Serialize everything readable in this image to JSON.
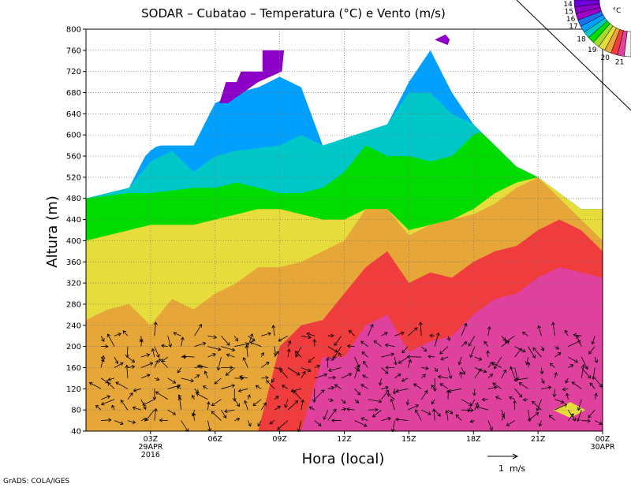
{
  "chart_data": {
    "type": "heatmap",
    "title": "SODAR – Cubatao – Temperatura (°C) e Vento (m/s)",
    "xlabel": "Hora (local)",
    "ylabel": "Altura (m)",
    "ylim": [
      40,
      800
    ],
    "y_ticks": [
      40,
      80,
      120,
      160,
      200,
      240,
      280,
      320,
      360,
      400,
      440,
      480,
      520,
      560,
      600,
      640,
      680,
      720,
      760,
      800
    ],
    "x_range_hours": [
      0,
      24
    ],
    "x_ticks": [
      {
        "hour": 3,
        "lines": [
          "03Z",
          "29APR",
          "2016"
        ]
      },
      {
        "hour": 6,
        "lines": [
          "06Z"
        ]
      },
      {
        "hour": 9,
        "lines": [
          "09Z"
        ]
      },
      {
        "hour": 12,
        "lines": [
          "12Z"
        ]
      },
      {
        "hour": 15,
        "lines": [
          "15Z"
        ]
      },
      {
        "hour": 18,
        "lines": [
          "18Z"
        ]
      },
      {
        "hour": 21,
        "lines": [
          "21Z"
        ]
      },
      {
        "hour": 24,
        "lines": [
          "00Z",
          "30APR"
        ]
      }
    ],
    "grid": true,
    "legend": {
      "placement": "top-right",
      "unit": "°C",
      "levels": [
        {
          "label": "",
          "color": "#f0f0f0"
        },
        {
          "label": "21",
          "color": "#e0409e"
        },
        {
          "label": "",
          "color": "#f03c3c"
        },
        {
          "label": "20",
          "color": "#e6a638"
        },
        {
          "label": "",
          "color": "#e6dc3c"
        },
        {
          "label": "19",
          "color": "#a0dc32"
        },
        {
          "label": "",
          "color": "#00dc00"
        },
        {
          "label": "18",
          "color": "#00c8c8"
        },
        {
          "label": "",
          "color": "#00a0ff"
        },
        {
          "label": "17",
          "color": "#1e6ef0"
        },
        {
          "label": "16",
          "color": "#a000c8"
        },
        {
          "label": "15",
          "color": "#8c00c8"
        },
        {
          "label": "14",
          "color": "#6e00dc"
        }
      ]
    },
    "wind_scale": {
      "label": "1  m/s",
      "value": 1
    },
    "coverage_top_by_hour": [
      {
        "t": 0,
        "h": 480
      },
      {
        "t": 2,
        "h": 500
      },
      {
        "t": 3,
        "h": 580
      },
      {
        "t": 5,
        "h": 580
      },
      {
        "t": 6,
        "h": 660
      },
      {
        "t": 7,
        "h": 700
      },
      {
        "t": 8,
        "h": 720
      },
      {
        "t": 9,
        "h": 760
      },
      {
        "t": 10,
        "h": 700
      },
      {
        "t": 11,
        "h": 580
      },
      {
        "t": 14,
        "h": 620
      },
      {
        "t": 15,
        "h": 700
      },
      {
        "t": 16,
        "h": 780
      },
      {
        "t": 17,
        "h": 680
      },
      {
        "t": 18,
        "h": 620
      },
      {
        "t": 20,
        "h": 540
      },
      {
        "t": 21,
        "h": 520
      },
      {
        "t": 23,
        "h": 460
      },
      {
        "t": 24,
        "h": 460
      }
    ],
    "temperature_bands": [
      {
        "color": "#8c00c8",
        "upper": [
          {
            "t": 0,
            "h": 40
          },
          {
            "t": 24,
            "h": 40
          }
        ]
      },
      {
        "color": "#1e6ef0",
        "upper": [
          {
            "t": 0,
            "h": 40
          },
          {
            "t": 24,
            "h": 40
          }
        ]
      },
      {
        "color": "#00a0ff",
        "upper": [
          {
            "t": 0,
            "h": 480
          },
          {
            "t": 6,
            "h": 660
          },
          {
            "t": 7,
            "h": 680
          },
          {
            "t": 8,
            "h": 690
          },
          {
            "t": 9,
            "h": 710
          },
          {
            "t": 10,
            "h": 690
          },
          {
            "t": 11,
            "h": 580
          },
          {
            "t": 14,
            "h": 620
          },
          {
            "t": 15,
            "h": 700
          },
          {
            "t": 16,
            "h": 760
          },
          {
            "t": 17,
            "h": 680
          },
          {
            "t": 18,
            "h": 620
          },
          {
            "t": 24,
            "h": 460
          }
        ]
      },
      {
        "color": "#00c8c8",
        "upper": [
          {
            "t": 0,
            "h": 480
          },
          {
            "t": 2,
            "h": 500
          },
          {
            "t": 3,
            "h": 550
          },
          {
            "t": 4,
            "h": 570
          },
          {
            "t": 5,
            "h": 530
          },
          {
            "t": 6,
            "h": 560
          },
          {
            "t": 7,
            "h": 570
          },
          {
            "t": 8,
            "h": 575
          },
          {
            "t": 9,
            "h": 580
          },
          {
            "t": 10,
            "h": 600
          },
          {
            "t": 11,
            "h": 580
          },
          {
            "t": 14,
            "h": 620
          },
          {
            "t": 15,
            "h": 680
          },
          {
            "t": 16,
            "h": 680
          },
          {
            "t": 17,
            "h": 640
          },
          {
            "t": 18,
            "h": 620
          },
          {
            "t": 24,
            "h": 460
          }
        ]
      },
      {
        "color": "#00dc00",
        "upper": [
          {
            "t": 0,
            "h": 480
          },
          {
            "t": 2,
            "h": 490
          },
          {
            "t": 3,
            "h": 490
          },
          {
            "t": 5,
            "h": 500
          },
          {
            "t": 6,
            "h": 500
          },
          {
            "t": 7,
            "h": 510
          },
          {
            "t": 8,
            "h": 500
          },
          {
            "t": 9,
            "h": 490
          },
          {
            "t": 10,
            "h": 490
          },
          {
            "t": 11,
            "h": 500
          },
          {
            "t": 12,
            "h": 530
          },
          {
            "t": 13,
            "h": 580
          },
          {
            "t": 14,
            "h": 560
          },
          {
            "t": 15,
            "h": 560
          },
          {
            "t": 16,
            "h": 550
          },
          {
            "t": 17,
            "h": 560
          },
          {
            "t": 18,
            "h": 600
          },
          {
            "t": 19,
            "h": 620
          },
          {
            "t": 20,
            "h": 540
          },
          {
            "t": 21,
            "h": 520
          },
          {
            "t": 24,
            "h": 460
          }
        ]
      },
      {
        "color": "#e6dc3c",
        "upper": [
          {
            "t": 0,
            "h": 400
          },
          {
            "t": 2,
            "h": 420
          },
          {
            "t": 3,
            "h": 430
          },
          {
            "t": 5,
            "h": 430
          },
          {
            "t": 6,
            "h": 440
          },
          {
            "t": 7,
            "h": 450
          },
          {
            "t": 8,
            "h": 460
          },
          {
            "t": 9,
            "h": 460
          },
          {
            "t": 10,
            "h": 450
          },
          {
            "t": 11,
            "h": 440
          },
          {
            "t": 12,
            "h": 440
          },
          {
            "t": 13,
            "h": 460
          },
          {
            "t": 14,
            "h": 460
          },
          {
            "t": 15,
            "h": 420
          },
          {
            "t": 16,
            "h": 430
          },
          {
            "t": 17,
            "h": 440
          },
          {
            "t": 18,
            "h": 460
          },
          {
            "t": 19,
            "h": 490
          },
          {
            "t": 20,
            "h": 510
          },
          {
            "t": 21,
            "h": 520
          },
          {
            "t": 24,
            "h": 460
          }
        ]
      },
      {
        "color": "#e6a638",
        "upper": [
          {
            "t": 0,
            "h": 250
          },
          {
            "t": 1,
            "h": 270
          },
          {
            "t": 2,
            "h": 280
          },
          {
            "t": 3,
            "h": 240
          },
          {
            "t": 4,
            "h": 290
          },
          {
            "t": 5,
            "h": 270
          },
          {
            "t": 6,
            "h": 300
          },
          {
            "t": 7,
            "h": 320
          },
          {
            "t": 8,
            "h": 350
          },
          {
            "t": 9,
            "h": 350
          },
          {
            "t": 10,
            "h": 360
          },
          {
            "t": 11,
            "h": 380
          },
          {
            "t": 12,
            "h": 400
          },
          {
            "t": 13,
            "h": 460
          },
          {
            "t": 14,
            "h": 460
          },
          {
            "t": 15,
            "h": 410
          },
          {
            "t": 16,
            "h": 430
          },
          {
            "t": 17,
            "h": 440
          },
          {
            "t": 18,
            "h": 450
          },
          {
            "t": 19,
            "h": 470
          },
          {
            "t": 20,
            "h": 500
          },
          {
            "t": 21,
            "h": 520
          },
          {
            "t": 24,
            "h": 400
          }
        ]
      },
      {
        "color": "#f03c3c",
        "upper": [
          {
            "t": 0,
            "h": 40
          },
          {
            "t": 8,
            "h": 40
          },
          {
            "t": 9,
            "h": 200
          },
          {
            "t": 10,
            "h": 240
          },
          {
            "t": 11,
            "h": 250
          },
          {
            "t": 12,
            "h": 300
          },
          {
            "t": 13,
            "h": 350
          },
          {
            "t": 14,
            "h": 380
          },
          {
            "t": 15,
            "h": 320
          },
          {
            "t": 16,
            "h": 340
          },
          {
            "t": 17,
            "h": 330
          },
          {
            "t": 18,
            "h": 360
          },
          {
            "t": 19,
            "h": 380
          },
          {
            "t": 20,
            "h": 390
          },
          {
            "t": 21,
            "h": 420
          },
          {
            "t": 22,
            "h": 440
          },
          {
            "t": 23,
            "h": 420
          },
          {
            "t": 24,
            "h": 380
          }
        ]
      },
      {
        "color": "#e0409e",
        "upper": [
          {
            "t": 0,
            "h": 40
          },
          {
            "t": 9,
            "h": 40
          },
          {
            "t": 10,
            "h": 40
          },
          {
            "t": 11,
            "h": 180
          },
          {
            "t": 12,
            "h": 180
          },
          {
            "t": 13,
            "h": 240
          },
          {
            "t": 14,
            "h": 260
          },
          {
            "t": 15,
            "h": 190
          },
          {
            "t": 16,
            "h": 210
          },
          {
            "t": 17,
            "h": 220
          },
          {
            "t": 18,
            "h": 260
          },
          {
            "t": 19,
            "h": 290
          },
          {
            "t": 20,
            "h": 300
          },
          {
            "t": 21,
            "h": 330
          },
          {
            "t": 22,
            "h": 350
          },
          {
            "t": 23,
            "h": 340
          },
          {
            "t": 24,
            "h": 330
          }
        ]
      }
    ],
    "temperature_patches": [
      {
        "color": "#e6a638",
        "points": [
          {
            "t": 0,
            "h": 40
          },
          {
            "t": 0.5,
            "h": 60
          },
          {
            "t": 1.5,
            "h": 70
          },
          {
            "t": 2.5,
            "h": 80
          },
          {
            "t": 3.5,
            "h": 70
          },
          {
            "t": 3.3,
            "h": 40
          }
        ]
      },
      {
        "color": "#e0409e",
        "points": [
          {
            "t": 10.2,
            "h": 40
          },
          {
            "t": 11,
            "h": 70
          },
          {
            "t": 12.5,
            "h": 65
          },
          {
            "t": 13,
            "h": 40
          }
        ]
      },
      {
        "color": "#e0409e",
        "points": [
          {
            "t": 16.3,
            "h": 40
          },
          {
            "t": 17,
            "h": 80
          },
          {
            "t": 17.5,
            "h": 40
          }
        ]
      },
      {
        "color": "#e6dc3c",
        "points": [
          {
            "t": 21.7,
            "h": 80
          },
          {
            "t": 22.5,
            "h": 95
          },
          {
            "t": 23.2,
            "h": 80
          },
          {
            "t": 22.5,
            "h": 65
          }
        ]
      },
      {
        "color": "#e0409e",
        "points": [
          {
            "t": 23.1,
            "h": 210
          },
          {
            "t": 23.6,
            "h": 190
          },
          {
            "t": 23.1,
            "h": 170
          }
        ]
      },
      {
        "color": "#8c00c8",
        "points": [
          {
            "t": 6.2,
            "h": 660
          },
          {
            "t": 6.5,
            "h": 700
          },
          {
            "t": 7,
            "h": 700
          },
          {
            "t": 7.2,
            "h": 720
          },
          {
            "t": 8.2,
            "h": 720
          },
          {
            "t": 8.2,
            "h": 760
          },
          {
            "t": 9.2,
            "h": 760
          },
          {
            "t": 9.1,
            "h": 720
          },
          {
            "t": 8,
            "h": 700
          },
          {
            "t": 6.6,
            "h": 660
          }
        ]
      },
      {
        "color": "#8c00c8",
        "points": [
          {
            "t": 16.2,
            "h": 780
          },
          {
            "t": 16.7,
            "h": 790
          },
          {
            "t": 16.9,
            "h": 780
          },
          {
            "t": 16.8,
            "h": 770
          }
        ]
      }
    ]
  },
  "footer": {
    "credit": "GrADS: COLA/IGES"
  }
}
